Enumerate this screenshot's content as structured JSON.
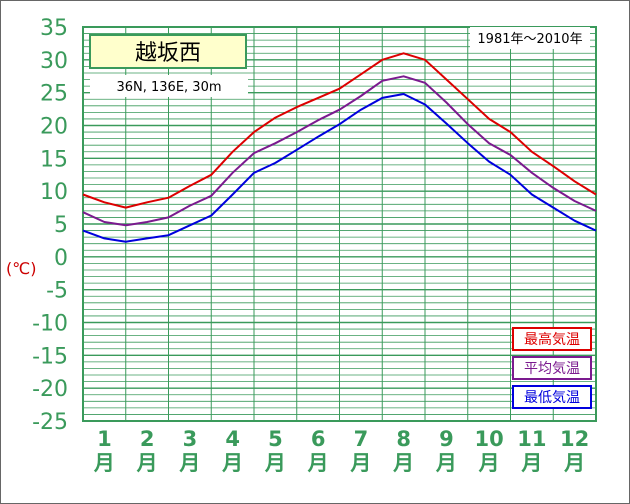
{
  "chart_data": {
    "type": "line",
    "title": "越坂西",
    "location": "36N, 136E, 30m",
    "period": "1981年〜2010年",
    "ylabel": "(℃)",
    "ylim": [
      -25,
      35
    ],
    "y_ticks": [
      35,
      30,
      25,
      20,
      15,
      10,
      5,
      0,
      -5,
      -10,
      -15,
      -20,
      -25
    ],
    "categories": [
      "1\n月",
      "2\n月",
      "3\n月",
      "4\n月",
      "5\n月",
      "6\n月",
      "7\n月",
      "8\n月",
      "9\n月",
      "10\n月",
      "11\n月",
      "12\n月"
    ],
    "month_numbers": [
      "1",
      "2",
      "3",
      "4",
      "5",
      "6",
      "7",
      "8",
      "9",
      "10",
      "11",
      "12"
    ],
    "month_suffix": "月",
    "x": [
      0.0,
      0.5,
      1.0,
      1.5,
      2.0,
      2.5,
      3.0,
      3.5,
      4.0,
      4.5,
      5.0,
      5.5,
      6.0,
      6.5,
      7.0,
      7.5,
      8.0,
      8.5,
      9.0,
      9.5,
      10.0,
      10.5,
      11.0,
      11.5,
      12.0
    ],
    "series": [
      {
        "name": "最高気温",
        "color": "#dd0000",
        "values": [
          9.5,
          8.3,
          7.5,
          8.3,
          9.0,
          10.8,
          12.5,
          16.0,
          19.0,
          21.2,
          22.8,
          24.2,
          25.6,
          27.8,
          30.0,
          31.0,
          30.0,
          27.0,
          24.0,
          21.0,
          19.0,
          16.0,
          13.8,
          11.5,
          9.5
        ]
      },
      {
        "name": "平均気温",
        "color": "#7b1a8f",
        "values": [
          6.8,
          5.3,
          4.8,
          5.3,
          6.0,
          7.8,
          9.3,
          12.8,
          15.8,
          17.3,
          19.0,
          20.8,
          22.4,
          24.5,
          26.8,
          27.5,
          26.5,
          23.5,
          20.2,
          17.3,
          15.5,
          12.8,
          10.5,
          8.5,
          7.0
        ]
      },
      {
        "name": "最低気温",
        "color": "#0000dd",
        "values": [
          4.0,
          2.8,
          2.3,
          2.8,
          3.3,
          4.8,
          6.3,
          9.5,
          12.8,
          14.3,
          16.3,
          18.3,
          20.2,
          22.4,
          24.2,
          24.8,
          23.2,
          20.3,
          17.3,
          14.5,
          12.5,
          9.5,
          7.5,
          5.5,
          4.0
        ]
      }
    ],
    "grid": true,
    "legend_position": "bottom-right"
  },
  "colors": {
    "grid": "#3a9a5b",
    "frame": "#3a9a5b",
    "title_box_fill": "#ffffcc",
    "title_box_border": "#3a9a5b"
  }
}
